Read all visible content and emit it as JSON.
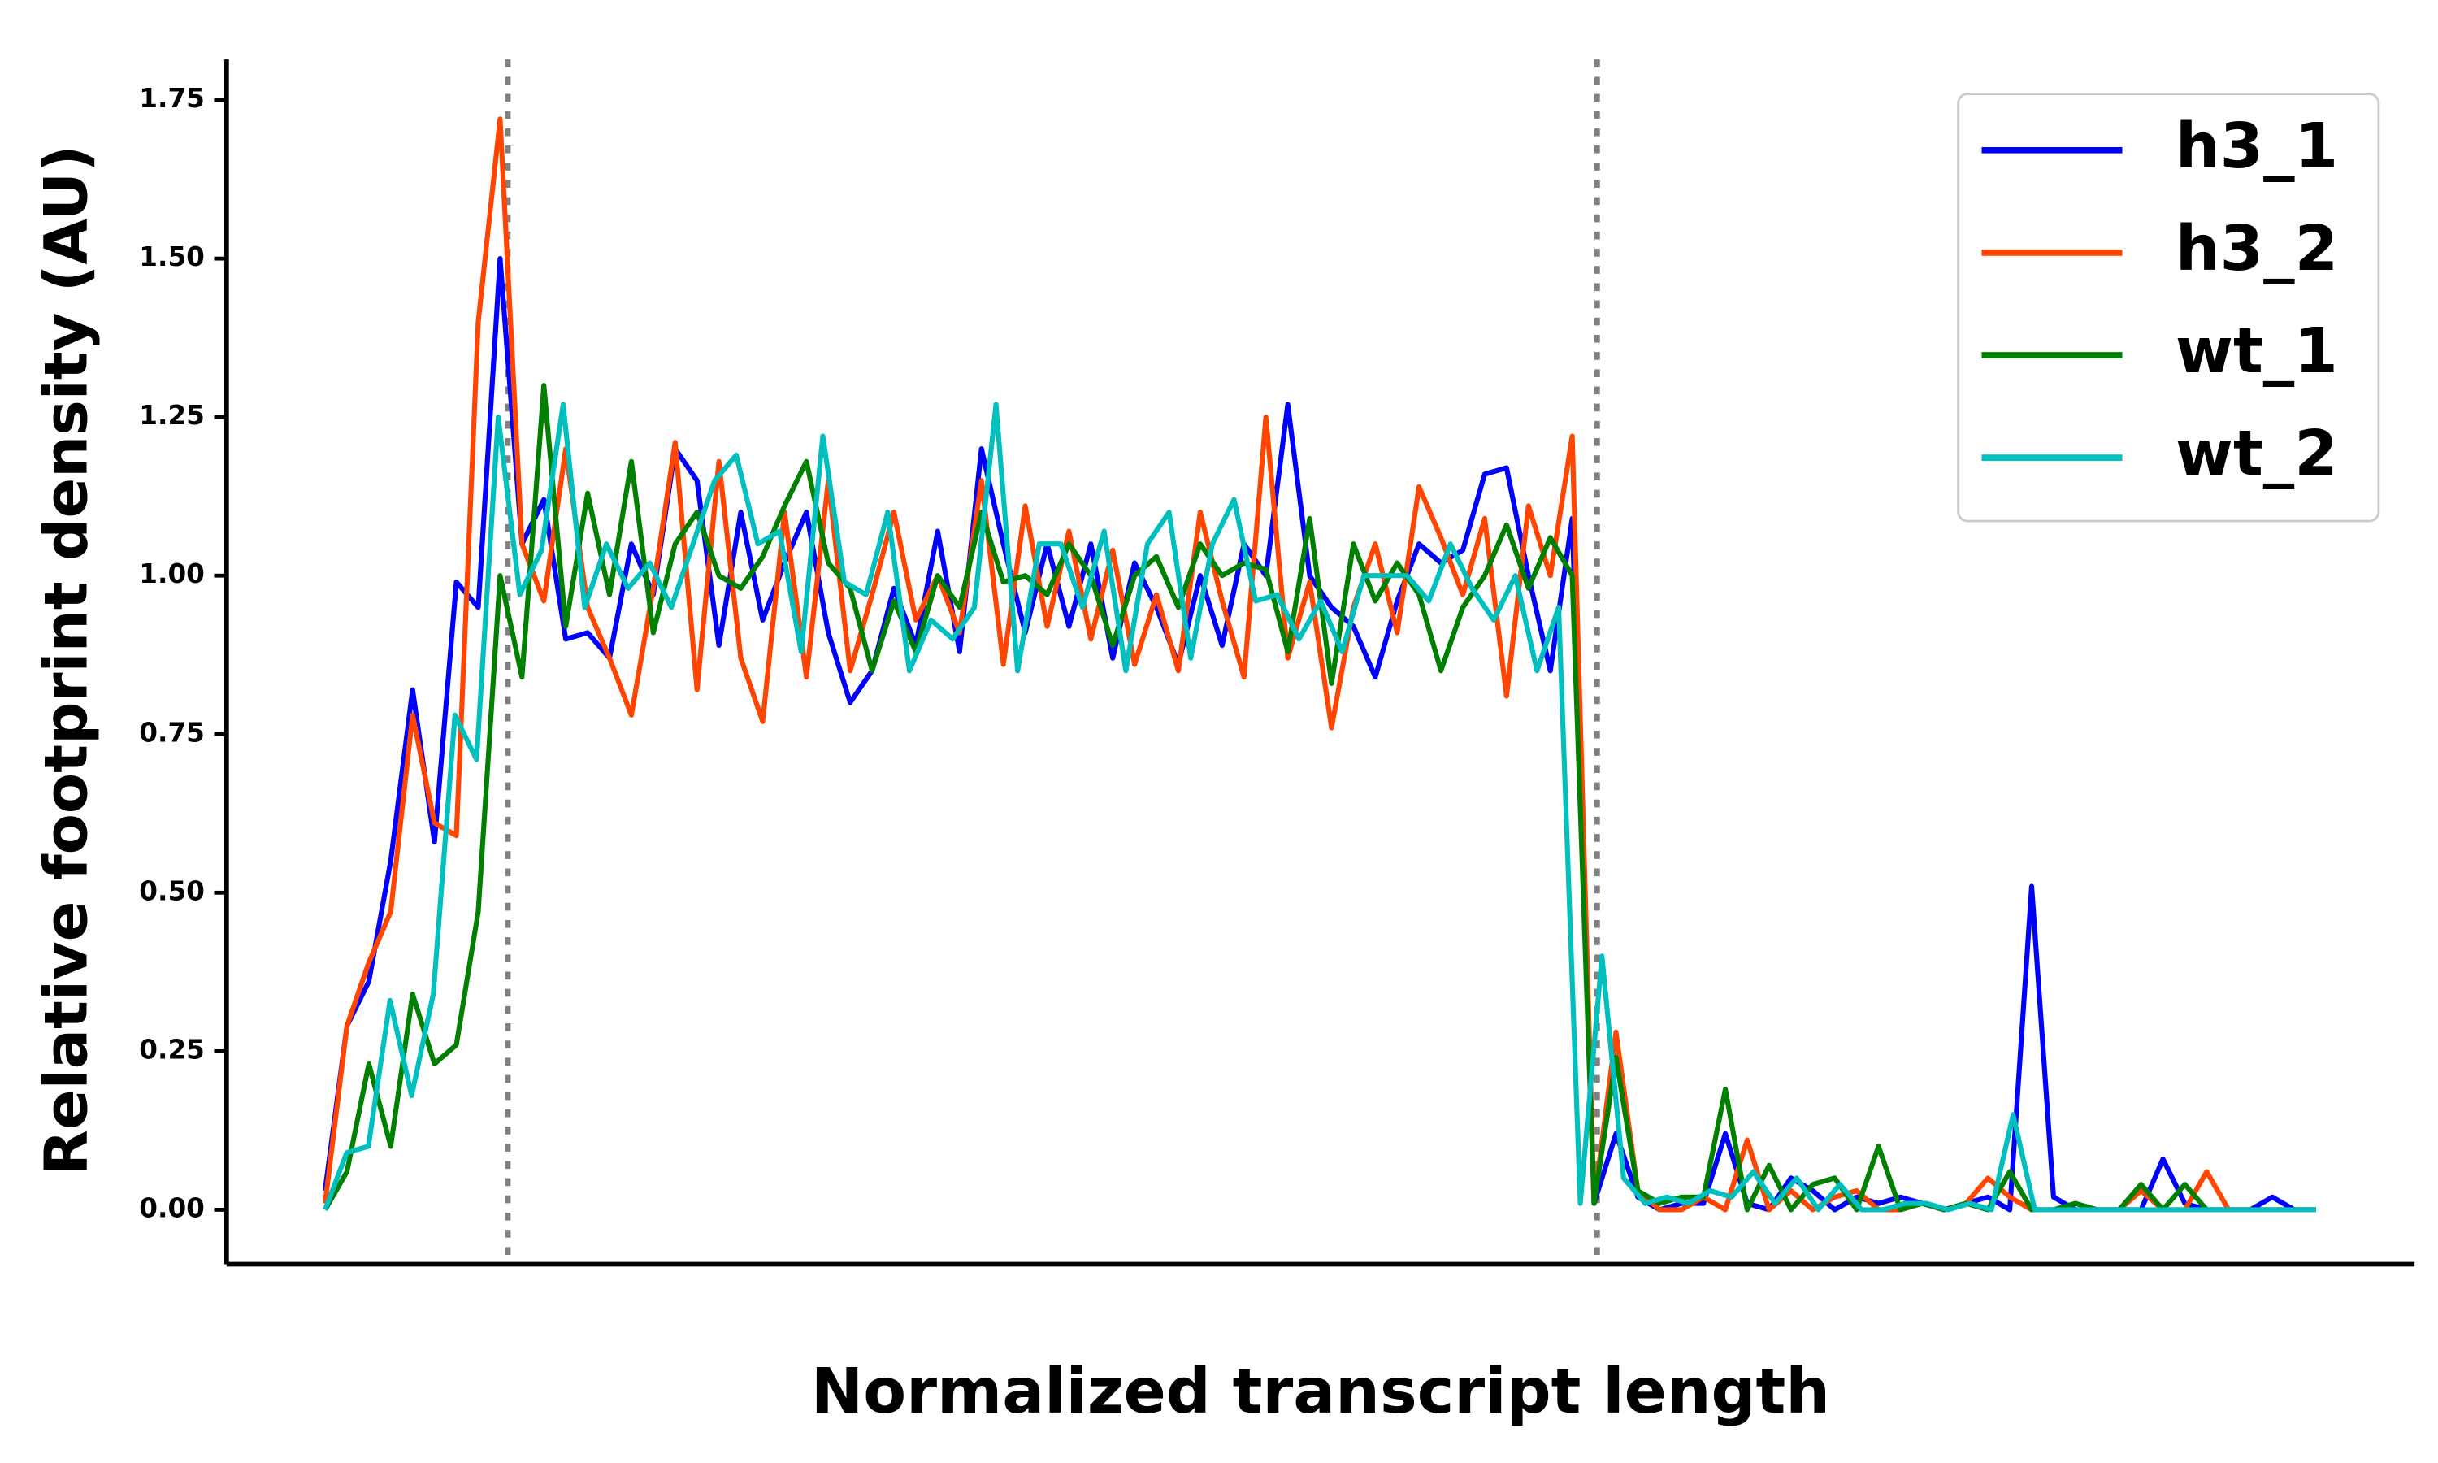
{
  "chart_data": {
    "type": "line",
    "y_label": "Relative footprint density (AU)",
    "x_label": "Normalized transcript length",
    "ylim": [
      -0.086,
      1.814
    ],
    "yticks": [
      {
        "value": 0,
        "label": "0.00"
      },
      {
        "value": 0.25,
        "label": "0.25"
      },
      {
        "value": 0.5,
        "label": "0.50"
      },
      {
        "value": 0.75,
        "label": "0.75"
      },
      {
        "value": 1,
        "label": "1.00"
      },
      {
        "value": 1.25,
        "label": "1.25"
      },
      {
        "value": 1.5,
        "label": "1.50"
      },
      {
        "value": 1.75,
        "label": "1.75"
      }
    ],
    "legend": "upper right",
    "series": [
      {
        "name": "h3_1",
        "color": "#0000ff",
        "values": [
          0.03,
          0.29,
          0.36,
          0.55,
          0.82,
          0.58,
          0.99,
          0.95,
          1.5,
          1.05,
          1.12,
          0.9,
          0.91,
          0.87,
          1.05,
          0.97,
          1.2,
          1.15,
          0.89,
          1.1,
          0.93,
          1.02,
          1.1,
          0.91,
          0.8,
          0.85,
          0.98,
          0.89,
          1.07,
          0.88,
          1.2,
          1.05,
          0.91,
          1.05,
          0.92,
          1.05,
          0.87,
          1.02,
          0.95,
          0.86,
          1.0,
          0.89,
          1.05,
          1.0,
          1.27,
          1.0,
          0.95,
          0.92,
          0.84,
          0.96,
          1.05,
          1.02,
          1.04,
          1.16,
          1.17,
          1.0,
          0.85,
          1.09,
          0.01,
          0.12,
          0.02,
          0.0,
          0.01,
          0.01,
          0.12,
          0.01,
          0.0,
          0.05,
          0.03,
          0.0,
          0.02,
          0.01,
          0.02,
          0.01,
          0.0,
          0.01,
          0.02,
          0.0,
          0.51,
          0.02,
          0.0,
          0.0,
          0.0,
          0.0,
          0.08,
          0.01,
          0.0,
          0.0,
          0.0,
          0.02,
          0.0,
          0.0
        ]
      },
      {
        "name": "h3_2",
        "color": "#ff4500",
        "values": [
          0.01,
          0.29,
          0.39,
          0.47,
          0.78,
          0.61,
          0.59,
          1.4,
          1.72,
          1.05,
          0.96,
          1.2,
          0.95,
          0.87,
          0.78,
          0.98,
          1.21,
          0.82,
          1.18,
          0.87,
          0.77,
          1.1,
          0.84,
          1.15,
          0.85,
          0.97,
          1.1,
          0.93,
          1.0,
          0.91,
          1.15,
          0.86,
          1.11,
          0.92,
          1.07,
          0.9,
          1.04,
          0.86,
          0.97,
          0.85,
          1.1,
          0.96,
          0.84,
          1.25,
          0.87,
          0.99,
          0.76,
          0.95,
          1.05,
          0.91,
          1.14,
          1.06,
          0.97,
          1.09,
          0.81,
          1.11,
          1.0,
          1.22,
          0.01,
          0.28,
          0.03,
          0.0,
          0.0,
          0.02,
          0.0,
          0.11,
          0.0,
          0.03,
          0.0,
          0.02,
          0.03,
          0.0,
          0.0,
          0.01,
          0.0,
          0.01,
          0.05,
          0.02,
          0.0,
          0.0,
          0.0,
          0.0,
          0.0,
          0.03,
          0.0,
          0.0,
          0.06,
          0.0,
          0.0,
          0.0,
          0.0,
          0.0
        ]
      },
      {
        "name": "wt_1",
        "color": "#008000",
        "values": [
          0.0,
          0.06,
          0.23,
          0.1,
          0.34,
          0.23,
          0.26,
          0.47,
          1.0,
          0.84,
          1.3,
          0.92,
          1.13,
          0.97,
          1.18,
          0.91,
          1.05,
          1.1,
          1.0,
          0.98,
          1.03,
          1.11,
          1.18,
          1.02,
          0.98,
          0.85,
          0.96,
          0.88,
          1.0,
          0.95,
          1.1,
          0.99,
          1.0,
          0.97,
          1.05,
          1.0,
          0.89,
          1.0,
          1.03,
          0.95,
          1.05,
          1.0,
          1.02,
          1.01,
          0.88,
          1.09,
          0.83,
          1.05,
          0.96,
          1.02,
          0.97,
          0.85,
          0.95,
          1.0,
          1.08,
          0.98,
          1.06,
          1.0,
          0.01,
          0.24,
          0.03,
          0.01,
          0.02,
          0.02,
          0.19,
          0.0,
          0.07,
          0.0,
          0.04,
          0.05,
          0.0,
          0.1,
          0.0,
          0.01,
          0.0,
          0.01,
          0.0,
          0.06,
          0.0,
          0.0,
          0.01,
          0.0,
          0.0,
          0.04,
          0.0,
          0.04,
          0.0,
          0.0,
          0.0,
          0.0,
          0.0,
          0.0
        ]
      },
      {
        "name": "wt_2",
        "color": "#00bfbf",
        "values": [
          0.0,
          0.09,
          0.1,
          0.33,
          0.18,
          0.34,
          0.78,
          0.71,
          1.25,
          0.97,
          1.04,
          1.27,
          0.95,
          1.05,
          0.98,
          1.02,
          0.95,
          1.05,
          1.15,
          1.19,
          1.05,
          1.07,
          0.88,
          1.22,
          0.99,
          0.97,
          1.1,
          0.85,
          0.93,
          0.9,
          0.95,
          1.27,
          0.85,
          1.05,
          1.05,
          0.95,
          1.07,
          0.85,
          1.05,
          1.1,
          0.87,
          1.05,
          1.12,
          0.96,
          0.97,
          0.9,
          0.96,
          0.88,
          1.0,
          1.0,
          1.0,
          0.96,
          1.05,
          0.98,
          0.93,
          1.0,
          0.85,
          0.95,
          0.01,
          0.4,
          0.05,
          0.01,
          0.02,
          0.01,
          0.03,
          0.02,
          0.06,
          0.01,
          0.05,
          0.0,
          0.04,
          0.0,
          0.0,
          0.01,
          0.01,
          0.0,
          0.01,
          0.0,
          0.15,
          0.0,
          0.0,
          0.0,
          0.0,
          0.0,
          0.0,
          0.0,
          0.0,
          0.0,
          0.0,
          0.0,
          0.0,
          0.0,
          0.0
        ]
      }
    ]
  }
}
